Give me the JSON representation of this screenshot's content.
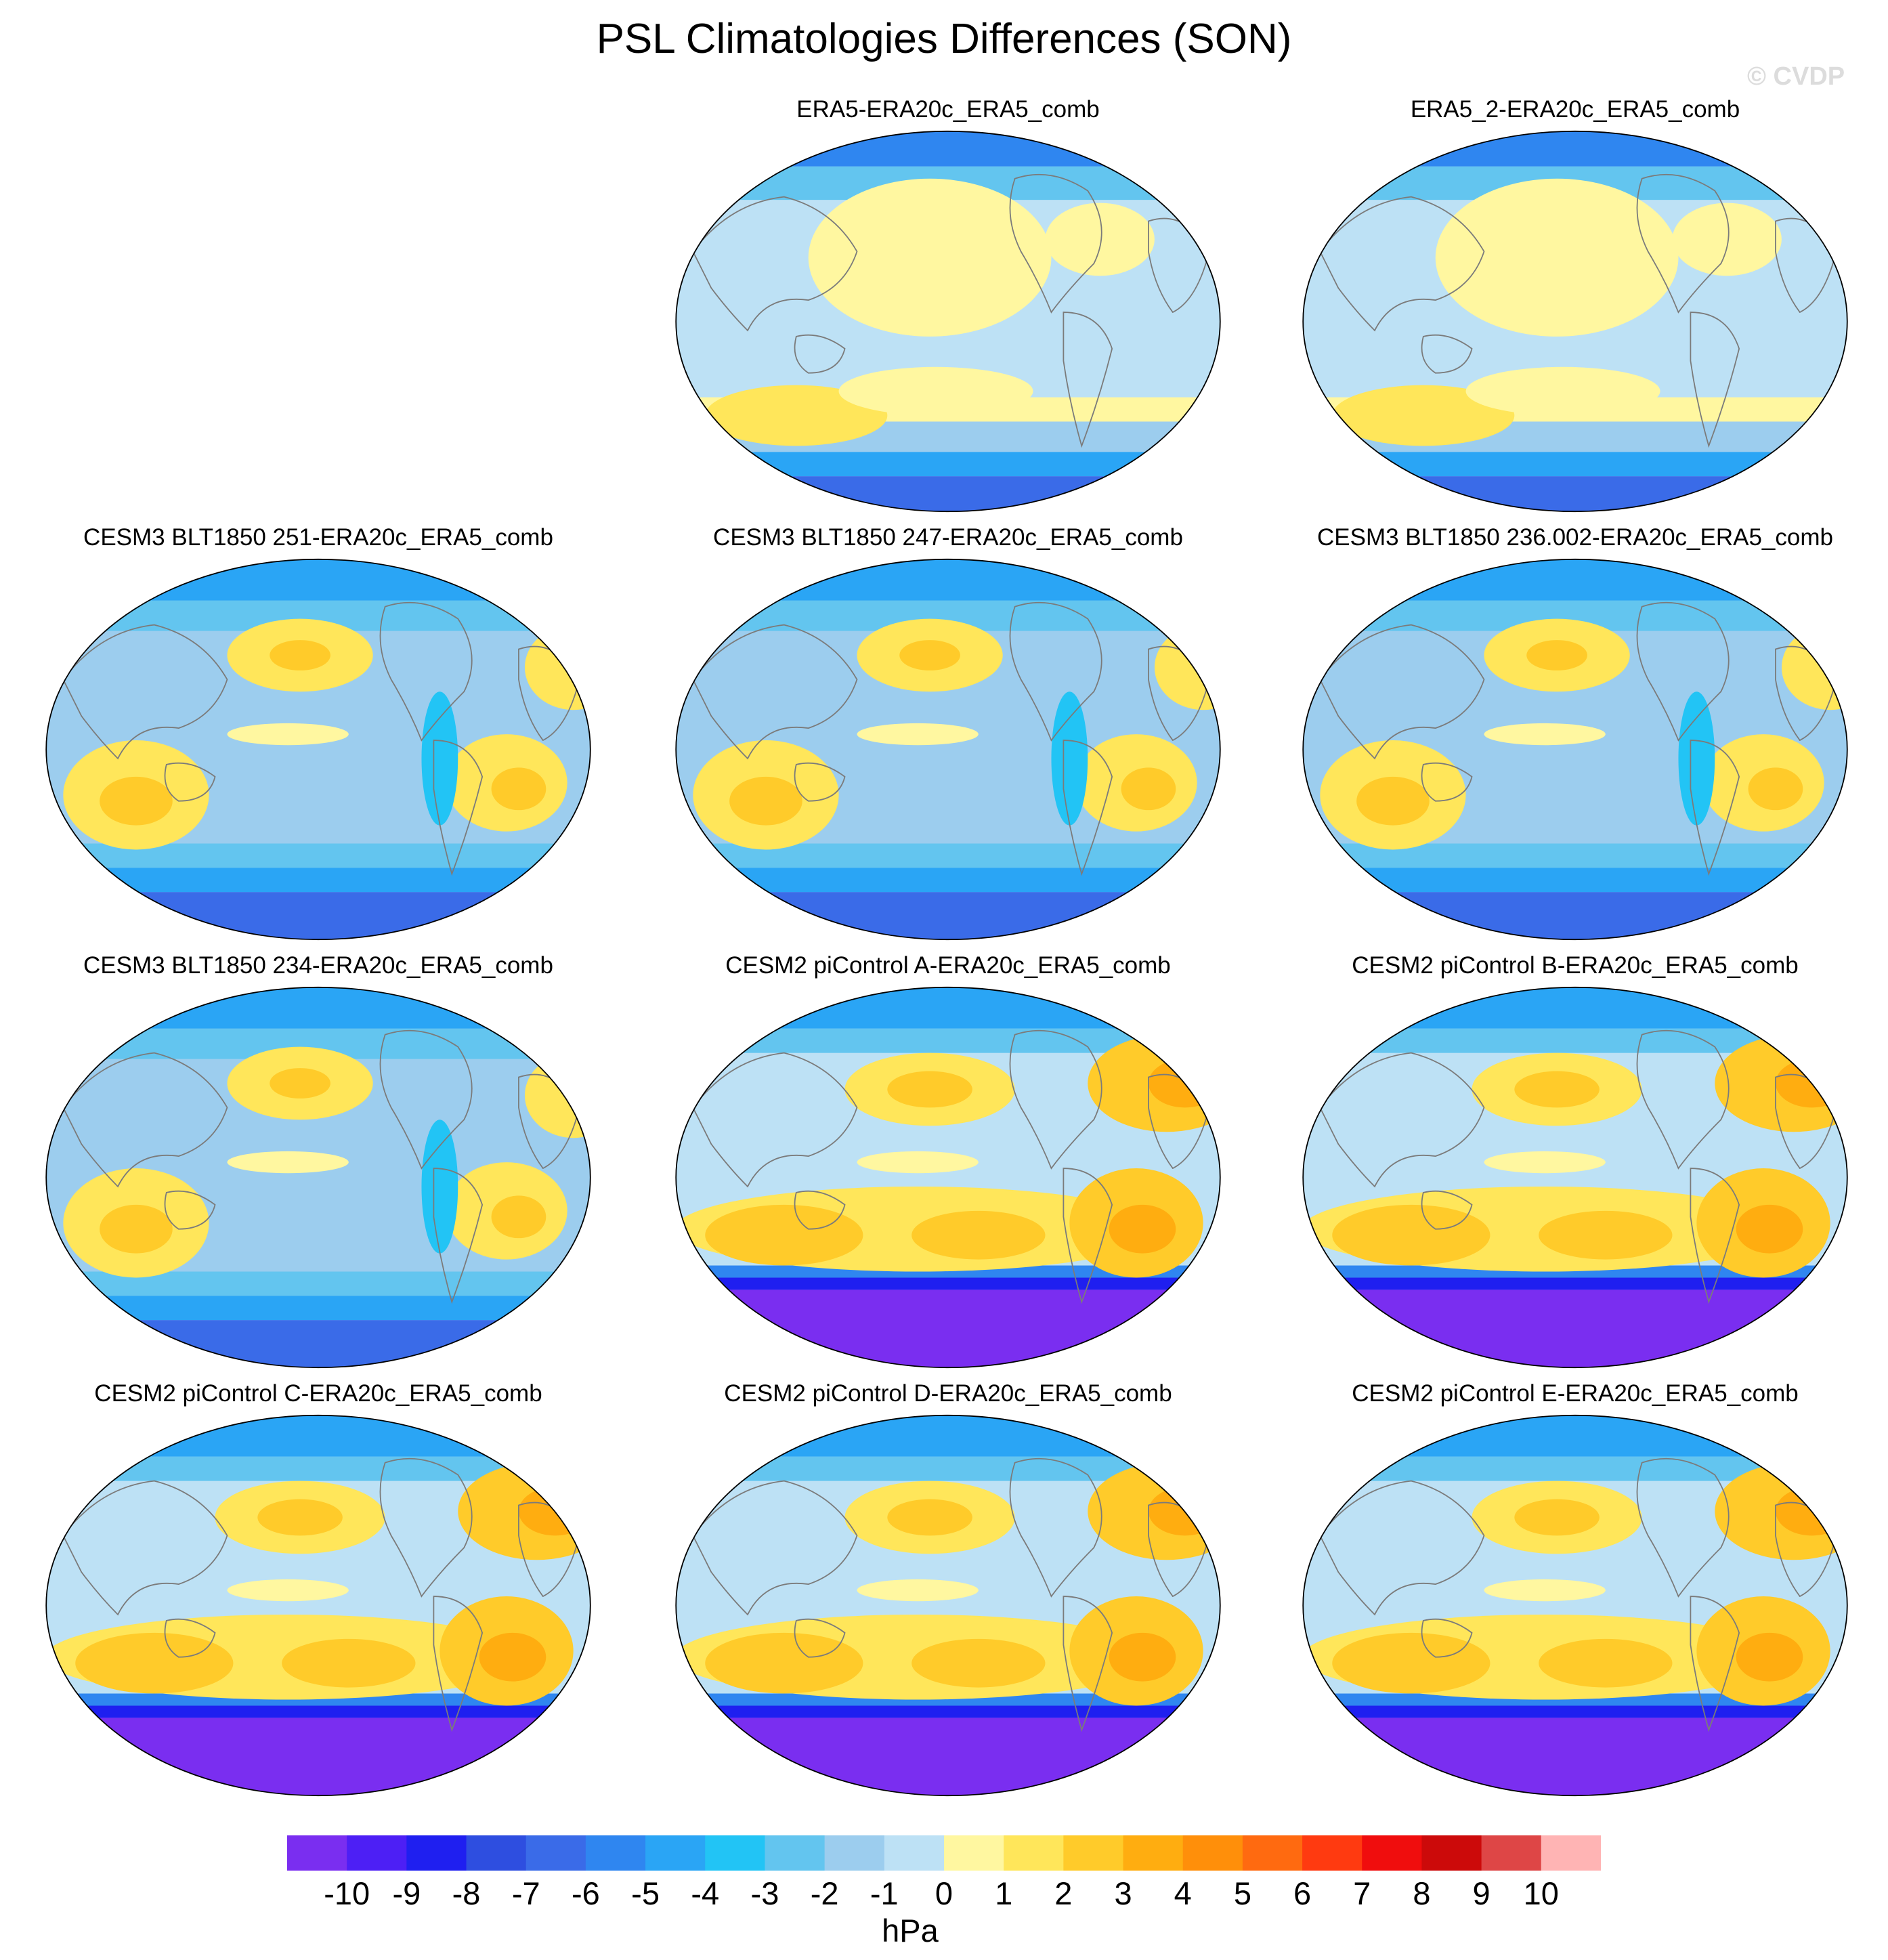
{
  "title": "PSL Climatologies Differences (SON)",
  "watermark": "© CVDP",
  "colorbar": {
    "colors": [
      "#7a2ef0",
      "#4d1ff5",
      "#1f1ff0",
      "#2e4ee0",
      "#3a6be8",
      "#2f86f0",
      "#2aa5f5",
      "#22c4f5",
      "#63c5ef",
      "#9ccdee",
      "#bde1f5",
      "#fff7a0",
      "#ffe65a",
      "#ffcb2a",
      "#ffad10",
      "#ff8f0a",
      "#ff6a10",
      "#ff3a10",
      "#f00d0d",
      "#cc0a0a",
      "#de4646",
      "#ffb4b4"
    ],
    "labels": [
      "-10",
      "-9",
      "-8",
      "-7",
      "-6",
      "-5",
      "-4",
      "-3",
      "-2",
      "-1",
      "0",
      "1",
      "2",
      "3",
      "4",
      "5",
      "6",
      "7",
      "8",
      "9",
      "10"
    ],
    "units": "hPa"
  },
  "panels": [
    {
      "title": "ERA5-ERA20c_ERA5_comb",
      "style": "era5"
    },
    {
      "title": "ERA5_2-ERA20c_ERA5_comb",
      "style": "era5"
    },
    {
      "title": "CESM3 BLT1850 251-ERA20c_ERA5_comb",
      "style": "cesm3"
    },
    {
      "title": "CESM3 BLT1850 247-ERA20c_ERA5_comb",
      "style": "cesm3"
    },
    {
      "title": "CESM3 BLT1850 236.002-ERA20c_ERA5_comb",
      "style": "cesm3"
    },
    {
      "title": "CESM3 BLT1850 234-ERA20c_ERA5_comb",
      "style": "cesm3"
    },
    {
      "title": "CESM2 piControl A-ERA20c_ERA5_comb",
      "style": "cesm2"
    },
    {
      "title": "CESM2 piControl B-ERA20c_ERA5_comb",
      "style": "cesm2"
    },
    {
      "title": "CESM2 piControl C-ERA20c_ERA5_comb",
      "style": "cesm2"
    },
    {
      "title": "CESM2 piControl D-ERA20c_ERA5_comb",
      "style": "cesm2"
    },
    {
      "title": "CESM2 piControl E-ERA20c_ERA5_comb",
      "style": "cesm2"
    }
  ]
}
